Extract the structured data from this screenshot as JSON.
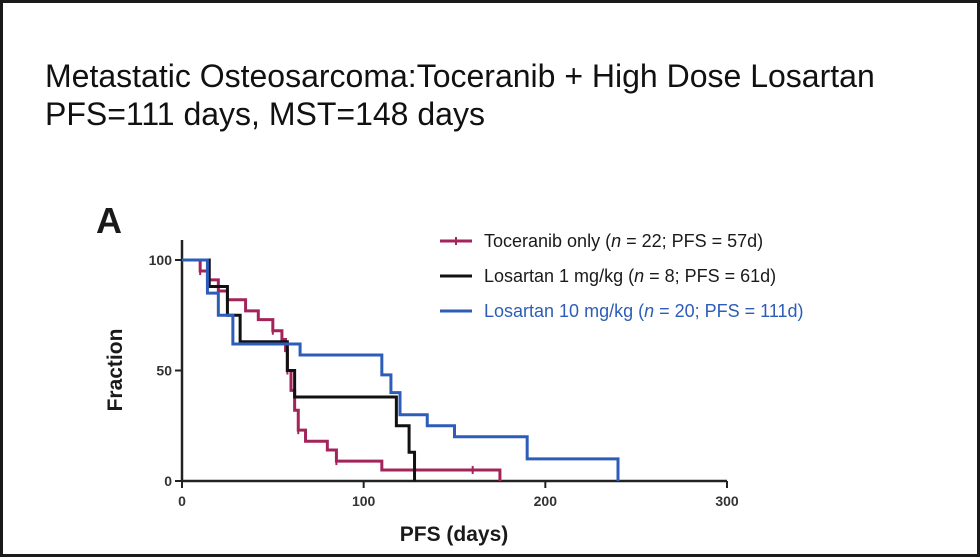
{
  "slide": {
    "title_line1": "Metastatic Osteosarcoma:Toceranib + High Dose Losartan",
    "title_line2": "PFS=111 days, MST=148 days"
  },
  "chart_data": {
    "type": "line",
    "panel_label": "A",
    "xlabel": "PFS (days)",
    "ylabel": "Fraction",
    "xlim": [
      0,
      300
    ],
    "ylim": [
      0,
      100
    ],
    "x_ticks": [
      0,
      100,
      200,
      300
    ],
    "y_ticks": [
      0,
      50,
      100
    ],
    "grid": false,
    "legend_position": "top-right",
    "step": true,
    "series": [
      {
        "name": "Toceranib only",
        "legend": {
          "before": "Toceranib only (",
          "n": "n",
          "after": " = 22; PFS = 57d)"
        },
        "color": "#a3245a",
        "marker": "censor-tick",
        "x": [
          0,
          10,
          14,
          20,
          25,
          35,
          42,
          50,
          55,
          57,
          58,
          60,
          62,
          64,
          68,
          80,
          85,
          110,
          130,
          160,
          175
        ],
        "y": [
          100,
          95,
          91,
          86,
          82,
          77,
          73,
          68,
          64,
          59,
          50,
          41,
          32,
          23,
          18,
          14,
          9,
          5,
          5,
          5,
          0
        ]
      },
      {
        "name": "Losartan 1 mg/kg",
        "legend": {
          "before": "Losartan 1 mg/kg (",
          "n": "n",
          "after": " = 8; PFS = 61d)"
        },
        "color": "#111111",
        "marker": "none",
        "x": [
          0,
          15,
          25,
          32,
          58,
          62,
          68,
          118,
          125,
          128
        ],
        "y": [
          100,
          88,
          75,
          63,
          50,
          38,
          38,
          25,
          13,
          0
        ]
      },
      {
        "name": "Losartan 10 mg/kg",
        "legend": {
          "before": "Losartan 10 mg/kg (",
          "n": "n",
          "after": " = 20; PFS = 111d)"
        },
        "color": "#2d5db8",
        "marker": "none",
        "x": [
          0,
          14,
          20,
          28,
          58,
          65,
          110,
          115,
          120,
          135,
          150,
          190,
          240
        ],
        "y": [
          100,
          85,
          75,
          62,
          62,
          57,
          48,
          40,
          30,
          25,
          20,
          10,
          0
        ]
      }
    ]
  }
}
